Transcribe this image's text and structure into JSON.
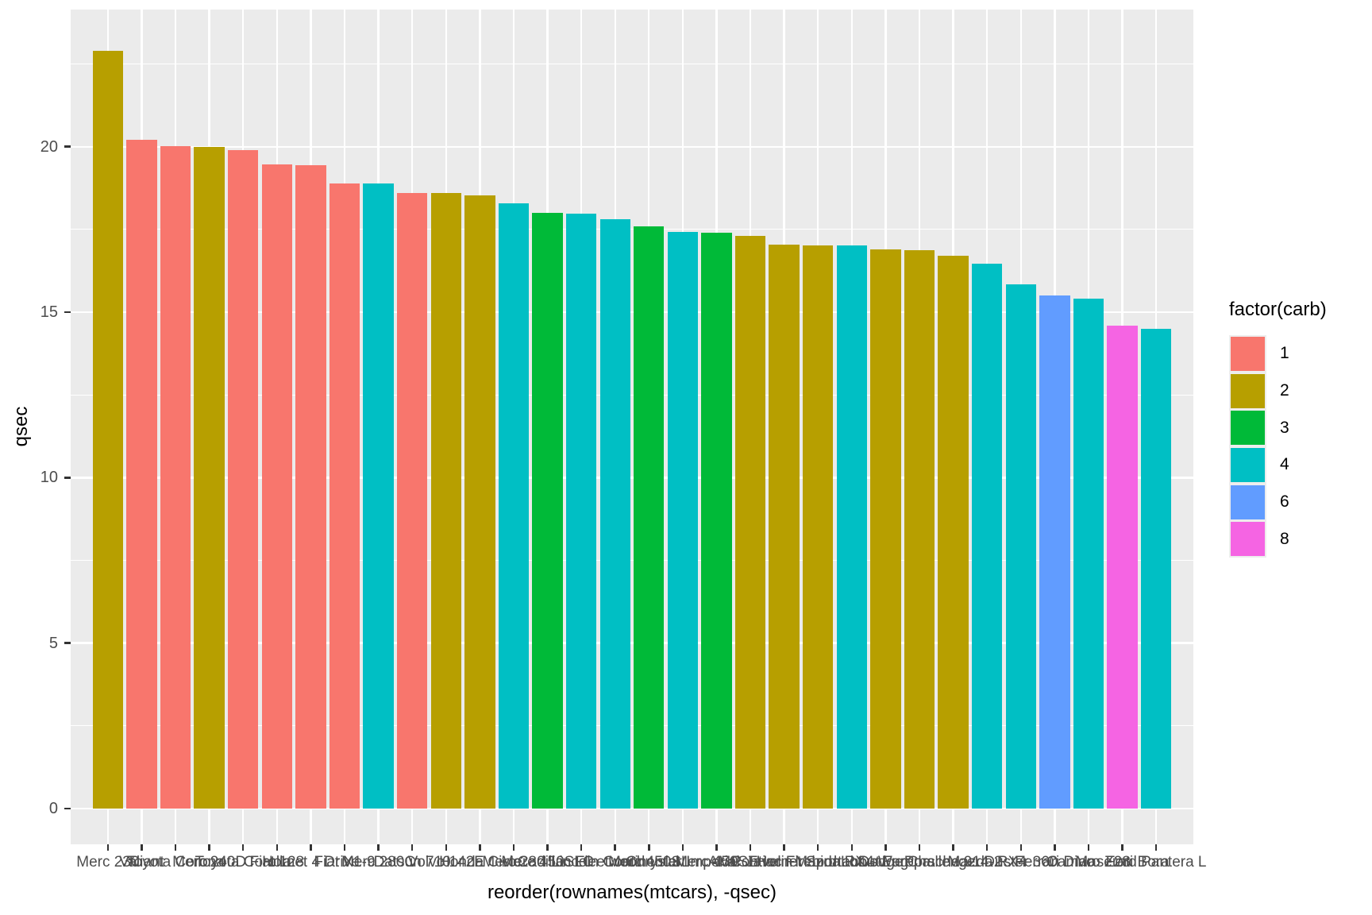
{
  "chart_data": {
    "type": "bar",
    "title": "",
    "xlabel": "reorder(rownames(mtcars), -qsec)",
    "ylabel": "qsec",
    "ylim": [
      0,
      22.9
    ],
    "y_major_ticks": [
      0,
      5,
      10,
      15,
      20
    ],
    "y_minor_ticks": [
      2.5,
      7.5,
      12.5,
      17.5,
      22.5
    ],
    "grid": true,
    "panel_background": "#EBEBEB",
    "gridline_color": "#FFFFFF",
    "axis_text_color": "#4D4D4D",
    "tick_mark_color": "#333333",
    "legend": {
      "title": "factor(carb)",
      "position": "right",
      "entries": [
        {
          "label": "1",
          "color": "#F8766D"
        },
        {
          "label": "2",
          "color": "#B79F00"
        },
        {
          "label": "3",
          "color": "#00BA38"
        },
        {
          "label": "4",
          "color": "#00BFC4"
        },
        {
          "label": "6",
          "color": "#619CFF"
        },
        {
          "label": "8",
          "color": "#F564E3"
        }
      ]
    },
    "categories": [
      "Merc 230",
      "Valiant",
      "Toyota Corona",
      "Merc 240D",
      "Toyota Corolla",
      "Fiat 128",
      "Hornet 4 Drive",
      "Fiat X1-9",
      "Merc 280C",
      "Datsun 710",
      "Volvo 142E",
      "Honda Civic",
      "Merc 280",
      "Merc 450SLC",
      "Cadillac Fleetwood",
      "Lincoln Continental",
      "Merc 450SL",
      "Chrysler Imperial",
      "Merc 450SE",
      "AMC Javelin",
      "Pontiac Firebird",
      "Hornet Sportabout",
      "Mazda RX4 Wag",
      "Lotus Europa",
      "Dodge Challenger",
      "Porsche 914-2",
      "Mazda RX4",
      "Duster 360",
      "Ferrari Dino",
      "Camaro Z28",
      "Maserati Bora",
      "Ford Pantera L"
    ],
    "values": [
      22.9,
      20.22,
      20.01,
      20.0,
      19.9,
      19.47,
      19.44,
      18.9,
      18.9,
      18.61,
      18.6,
      18.52,
      18.3,
      18.0,
      17.98,
      17.82,
      17.6,
      17.42,
      17.4,
      17.3,
      17.05,
      17.02,
      17.02,
      16.9,
      16.87,
      16.7,
      16.46,
      15.84,
      15.5,
      15.41,
      14.6,
      14.5
    ],
    "groups": [
      "2",
      "1",
      "1",
      "2",
      "1",
      "1",
      "1",
      "1",
      "4",
      "1",
      "2",
      "2",
      "4",
      "3",
      "4",
      "4",
      "3",
      "4",
      "3",
      "2",
      "2",
      "2",
      "4",
      "2",
      "2",
      "2",
      "4",
      "4",
      "6",
      "4",
      "8",
      "4"
    ],
    "group_colors": {
      "1": "#F8766D",
      "2": "#B79F00",
      "3": "#00BA38",
      "4": "#00BFC4",
      "6": "#619CFF",
      "8": "#F564E3"
    }
  }
}
